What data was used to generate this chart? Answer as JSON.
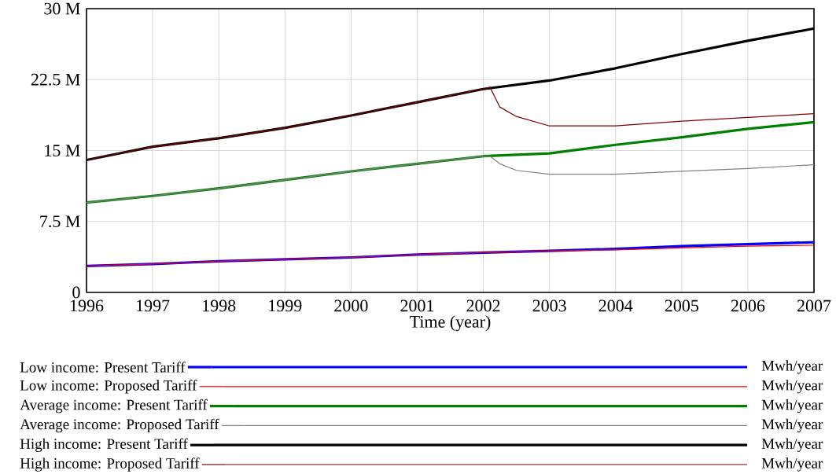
{
  "chart_data": {
    "type": "line",
    "xlabel": "Time (year)",
    "xlim": [
      1996,
      2007
    ],
    "xticks": [
      1996,
      1997,
      1998,
      1999,
      2000,
      2001,
      2002,
      2003,
      2004,
      2005,
      2006,
      2007
    ],
    "ylim": [
      0,
      30000000
    ],
    "yticks": [
      0,
      {
        "value": 7500000,
        "label": "7.5 M"
      },
      {
        "value": 15000000,
        "label": "15 M"
      },
      {
        "value": 22500000,
        "label": "22.5 M"
      },
      {
        "value": 30000000,
        "label": "30 M"
      }
    ],
    "grid": true,
    "legend": "bottom",
    "annotations": [
      "Mwh/year",
      "Mwh/year",
      "Mwh/year",
      "Mwh/year",
      "Mwh/year",
      "Mwh/year"
    ],
    "series": [
      {
        "name": "Low income: Present Tariff",
        "color": "#0000ff",
        "x": [
          1996,
          1997,
          1998,
          1999,
          2000,
          2001,
          2002,
          2003,
          2004,
          2005,
          2006,
          2007
        ],
        "values": [
          2800000,
          3000000,
          3300000,
          3500000,
          3700000,
          4000000,
          4200000,
          4400000,
          4600000,
          4900000,
          5100000,
          5300000
        ]
      },
      {
        "name": "Low income: Proposed Tariff",
        "color": "#ff0000",
        "x": [
          1996,
          1997,
          1998,
          1999,
          2000,
          2001,
          2002,
          2003,
          2004,
          2005,
          2006,
          2007
        ],
        "values": [
          2800000,
          3000000,
          3300000,
          3500000,
          3700000,
          4000000,
          4200000,
          4400000,
          4500000,
          4700000,
          4900000,
          5000000
        ]
      },
      {
        "name": "Average income: Present Tariff",
        "color": "#008000",
        "x": [
          1996,
          1997,
          1998,
          1999,
          2000,
          2001,
          2002,
          2003,
          2004,
          2005,
          2006,
          2007
        ],
        "values": [
          9500000,
          10200000,
          11000000,
          11900000,
          12800000,
          13600000,
          14400000,
          14700000,
          15600000,
          16400000,
          17300000,
          18000000
        ]
      },
      {
        "name": "Average income: Proposed Tariff",
        "color": "#808080",
        "x": [
          1996,
          1997,
          1998,
          1999,
          2000,
          2001,
          2002,
          2002.1,
          2002.25,
          2002.5,
          2003,
          2004,
          2005,
          2006,
          2007
        ],
        "values": [
          9500000,
          10200000,
          11000000,
          11900000,
          12800000,
          13600000,
          14400000,
          14400000,
          13600000,
          12900000,
          12500000,
          12500000,
          12800000,
          13100000,
          13500000
        ]
      },
      {
        "name": "High income: Present Tariff",
        "color": "#000000",
        "x": [
          1996,
          1997,
          1998,
          1999,
          2000,
          2001,
          2002,
          2003,
          2004,
          2005,
          2006,
          2007
        ],
        "values": [
          14000000,
          15400000,
          16300000,
          17400000,
          18700000,
          20100000,
          21500000,
          22400000,
          23700000,
          25200000,
          26600000,
          27900000
        ]
      },
      {
        "name": "High income: Proposed Tariff",
        "color": "#800000",
        "x": [
          1996,
          1997,
          1998,
          1999,
          2000,
          2001,
          2002,
          2002.1,
          2002.25,
          2002.5,
          2003,
          2004,
          2005,
          2006,
          2007
        ],
        "values": [
          14000000,
          15400000,
          16300000,
          17400000,
          18700000,
          20100000,
          21500000,
          21700000,
          19600000,
          18600000,
          17600000,
          17600000,
          18100000,
          18500000,
          18900000
        ]
      }
    ]
  }
}
